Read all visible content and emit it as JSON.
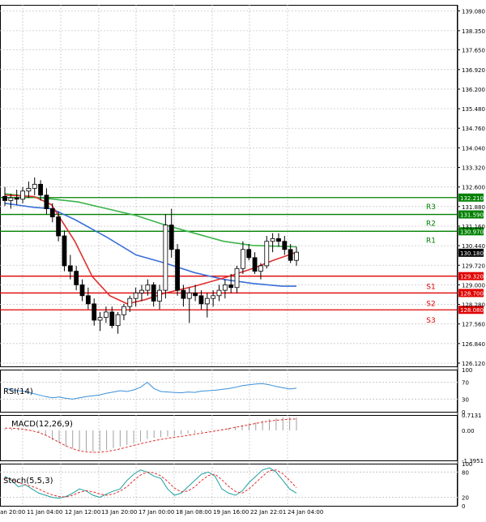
{
  "chart_data": {
    "type": "candlestick",
    "price_axis_ticks": [
      "139.080",
      "138.350",
      "137.650",
      "136.920",
      "136.200",
      "135.480",
      "134.760",
      "134.040",
      "133.320",
      "132.600",
      "131.880",
      "131.160",
      "130.440",
      "129.720",
      "129.000",
      "128.280",
      "127.560",
      "126.840",
      "126.120"
    ],
    "x_tick_labels": [
      "Jan 20:00",
      "11 Jan 04:00",
      "12 Jan 12:00",
      "13 Jan 20:00",
      "17 Jan 00:00",
      "18 Jan 08:00",
      "19 Jan 16:00",
      "22 Jan 22:01",
      "24 Jan 04:00"
    ],
    "levels": [
      {
        "name": "R3",
        "value": 132.21,
        "label": "132.210",
        "color": "#008000"
      },
      {
        "name": "R2",
        "value": 131.59,
        "label": "131.590",
        "color": "#008000"
      },
      {
        "name": "R1",
        "value": 130.97,
        "label": "130.970",
        "color": "#008000"
      },
      {
        "name": "S1",
        "value": 129.32,
        "label": "129.320",
        "color": "#e00000"
      },
      {
        "name": "S2",
        "value": 128.7,
        "label": "128.700",
        "color": "#e00000"
      },
      {
        "name": "S3",
        "value": 128.08,
        "label": "128.080",
        "color": "#e00000"
      }
    ],
    "current_price": "130.180",
    "ylim": [
      126.0,
      139.3
    ],
    "candles": [
      [
        132.25,
        132.6,
        131.9,
        132.1
      ],
      [
        132.1,
        132.35,
        131.8,
        132.2
      ],
      [
        132.2,
        132.5,
        131.95,
        132.15
      ],
      [
        132.15,
        132.6,
        132.0,
        132.45
      ],
      [
        132.45,
        132.8,
        132.2,
        132.55
      ],
      [
        132.55,
        132.95,
        132.3,
        132.7
      ],
      [
        132.7,
        132.85,
        132.1,
        132.3
      ],
      [
        132.3,
        132.55,
        131.6,
        131.8
      ],
      [
        131.8,
        132.0,
        131.3,
        131.5
      ],
      [
        131.5,
        131.7,
        130.6,
        130.8
      ],
      [
        130.8,
        131.0,
        129.5,
        129.7
      ],
      [
        129.7,
        130.1,
        129.2,
        129.5
      ],
      [
        129.5,
        129.7,
        128.8,
        129.0
      ],
      [
        129.0,
        129.2,
        128.4,
        128.6
      ],
      [
        128.6,
        128.9,
        128.1,
        128.3
      ],
      [
        128.3,
        128.5,
        127.5,
        127.7
      ],
      [
        127.7,
        128.0,
        127.3,
        127.8
      ],
      [
        127.8,
        128.2,
        127.6,
        128.0
      ],
      [
        128.0,
        128.2,
        127.4,
        127.5
      ],
      [
        127.5,
        128.0,
        127.2,
        127.9
      ],
      [
        127.9,
        128.3,
        127.7,
        128.2
      ],
      [
        128.2,
        128.6,
        128.0,
        128.5
      ],
      [
        128.5,
        128.9,
        128.2,
        128.7
      ],
      [
        128.7,
        129.0,
        128.4,
        128.8
      ],
      [
        128.8,
        129.2,
        128.6,
        129.0
      ],
      [
        129.0,
        129.1,
        128.2,
        128.4
      ],
      [
        128.4,
        129.0,
        128.1,
        128.8
      ],
      [
        128.8,
        131.6,
        128.5,
        131.2
      ],
      [
        131.2,
        131.8,
        130.0,
        130.3
      ],
      [
        130.3,
        130.5,
        128.6,
        128.8
      ],
      [
        128.8,
        129.0,
        128.2,
        128.5
      ],
      [
        128.5,
        128.9,
        127.6,
        128.7
      ],
      [
        128.7,
        129.0,
        128.4,
        128.6
      ],
      [
        128.6,
        128.8,
        128.1,
        128.3
      ],
      [
        128.3,
        128.7,
        127.8,
        128.5
      ],
      [
        128.5,
        128.8,
        128.2,
        128.6
      ],
      [
        128.6,
        129.0,
        128.4,
        128.8
      ],
      [
        128.8,
        129.2,
        128.5,
        129.0
      ],
      [
        129.0,
        129.4,
        128.7,
        128.9
      ],
      [
        128.9,
        129.7,
        128.7,
        129.6
      ],
      [
        129.6,
        130.6,
        129.4,
        130.3
      ],
      [
        130.3,
        130.5,
        129.9,
        130.0
      ],
      [
        130.0,
        130.2,
        129.4,
        129.5
      ],
      [
        129.5,
        129.8,
        129.2,
        129.7
      ],
      [
        129.7,
        130.8,
        129.6,
        130.6
      ],
      [
        130.6,
        130.9,
        130.2,
        130.7
      ],
      [
        130.7,
        130.9,
        130.4,
        130.6
      ],
      [
        130.6,
        130.8,
        130.1,
        130.3
      ],
      [
        130.3,
        130.5,
        129.8,
        129.9
      ],
      [
        129.9,
        130.4,
        129.7,
        130.2
      ]
    ],
    "ma_green": [
      [
        132.35,
        0
      ],
      [
        132.05,
        25
      ],
      [
        131.55,
        45
      ],
      [
        131.2,
        55
      ],
      [
        130.9,
        65
      ],
      [
        130.6,
        75
      ],
      [
        130.45,
        85
      ],
      [
        130.4,
        100
      ]
    ],
    "ma_blue": [
      [
        132.0,
        0
      ],
      [
        131.85,
        10
      ],
      [
        131.8,
        16
      ],
      [
        131.4,
        24
      ],
      [
        130.75,
        35
      ],
      [
        130.1,
        45
      ],
      [
        129.8,
        55
      ],
      [
        129.45,
        65
      ],
      [
        129.2,
        75
      ],
      [
        129.05,
        85
      ],
      [
        128.95,
        95
      ],
      [
        128.95,
        100
      ]
    ],
    "ma_red": [
      [
        132.3,
        0
      ],
      [
        132.25,
        10
      ],
      [
        131.95,
        16
      ],
      [
        130.6,
        24
      ],
      [
        129.3,
        30
      ],
      [
        128.6,
        36
      ],
      [
        128.3,
        42
      ],
      [
        128.45,
        48
      ],
      [
        128.7,
        55
      ],
      [
        128.95,
        65
      ],
      [
        129.25,
        75
      ],
      [
        129.6,
        85
      ],
      [
        129.9,
        92
      ],
      [
        130.2,
        100
      ]
    ],
    "rsi": {
      "label": "RSI(14)",
      "ticks": [
        "100",
        "70",
        "30",
        "0"
      ],
      "values": [
        56,
        52,
        50,
        48,
        44,
        40,
        36,
        33,
        35,
        32,
        30,
        33,
        36,
        38,
        40,
        44,
        47,
        50,
        48,
        52,
        58,
        70,
        55,
        48,
        47,
        46,
        45,
        47,
        46,
        49,
        50,
        51,
        53,
        55,
        58,
        62,
        64,
        66,
        67,
        64,
        60,
        57,
        54,
        56
      ]
    },
    "macd": {
      "label": "MACD(12,26,9)",
      "ticks": [
        "0.7131",
        "0.00",
        "-1.3951"
      ],
      "histogram": [
        0.05,
        0.08,
        0.1,
        0.06,
        0.02,
        -0.1,
        -0.25,
        -0.45,
        -0.6,
        -0.75,
        -0.85,
        -0.92,
        -0.96,
        -0.98,
        -0.95,
        -0.9,
        -0.82,
        -0.75,
        -0.68,
        -0.6,
        -0.52,
        -0.4,
        -0.35,
        -0.32,
        -0.28,
        -0.25,
        -0.2,
        -0.15,
        -0.12,
        -0.08,
        -0.03,
        0.02,
        0.06,
        0.12,
        0.18,
        0.25,
        0.32,
        0.38,
        0.45,
        0.52,
        0.56,
        0.6,
        0.62,
        0.6
      ],
      "signal": [
        0.1,
        0.1,
        0.08,
        0.04,
        -0.02,
        -0.1,
        -0.22,
        -0.38,
        -0.55,
        -0.72,
        -0.85,
        -0.95,
        -1.0,
        -1.02,
        -1.02,
        -0.98,
        -0.93,
        -0.86,
        -0.78,
        -0.7,
        -0.62,
        -0.55,
        -0.48,
        -0.42,
        -0.37,
        -0.32,
        -0.28,
        -0.23,
        -0.18,
        -0.13,
        -0.08,
        -0.03,
        0.02,
        0.08,
        0.14,
        0.2,
        0.26,
        0.32,
        0.38,
        0.43,
        0.47,
        0.5,
        0.52,
        0.53
      ]
    },
    "stoch": {
      "label": "Stoch(5,5,3)",
      "ticks": [
        "100",
        "80",
        "20",
        "0"
      ],
      "k": [
        70,
        60,
        45,
        50,
        40,
        30,
        25,
        20,
        18,
        22,
        30,
        40,
        35,
        25,
        20,
        28,
        35,
        40,
        60,
        75,
        85,
        80,
        70,
        65,
        40,
        25,
        30,
        45,
        60,
        75,
        80,
        70,
        40,
        30,
        25,
        35,
        55,
        70,
        85,
        90,
        80,
        60,
        40,
        30
      ],
      "d": [
        65,
        63,
        55,
        50,
        46,
        40,
        32,
        26,
        22,
        21,
        25,
        32,
        36,
        33,
        28,
        25,
        28,
        35,
        45,
        60,
        73,
        80,
        78,
        71,
        58,
        42,
        33,
        35,
        45,
        60,
        72,
        75,
        62,
        46,
        34,
        30,
        40,
        55,
        70,
        83,
        85,
        76,
        60,
        43
      ]
    }
  }
}
